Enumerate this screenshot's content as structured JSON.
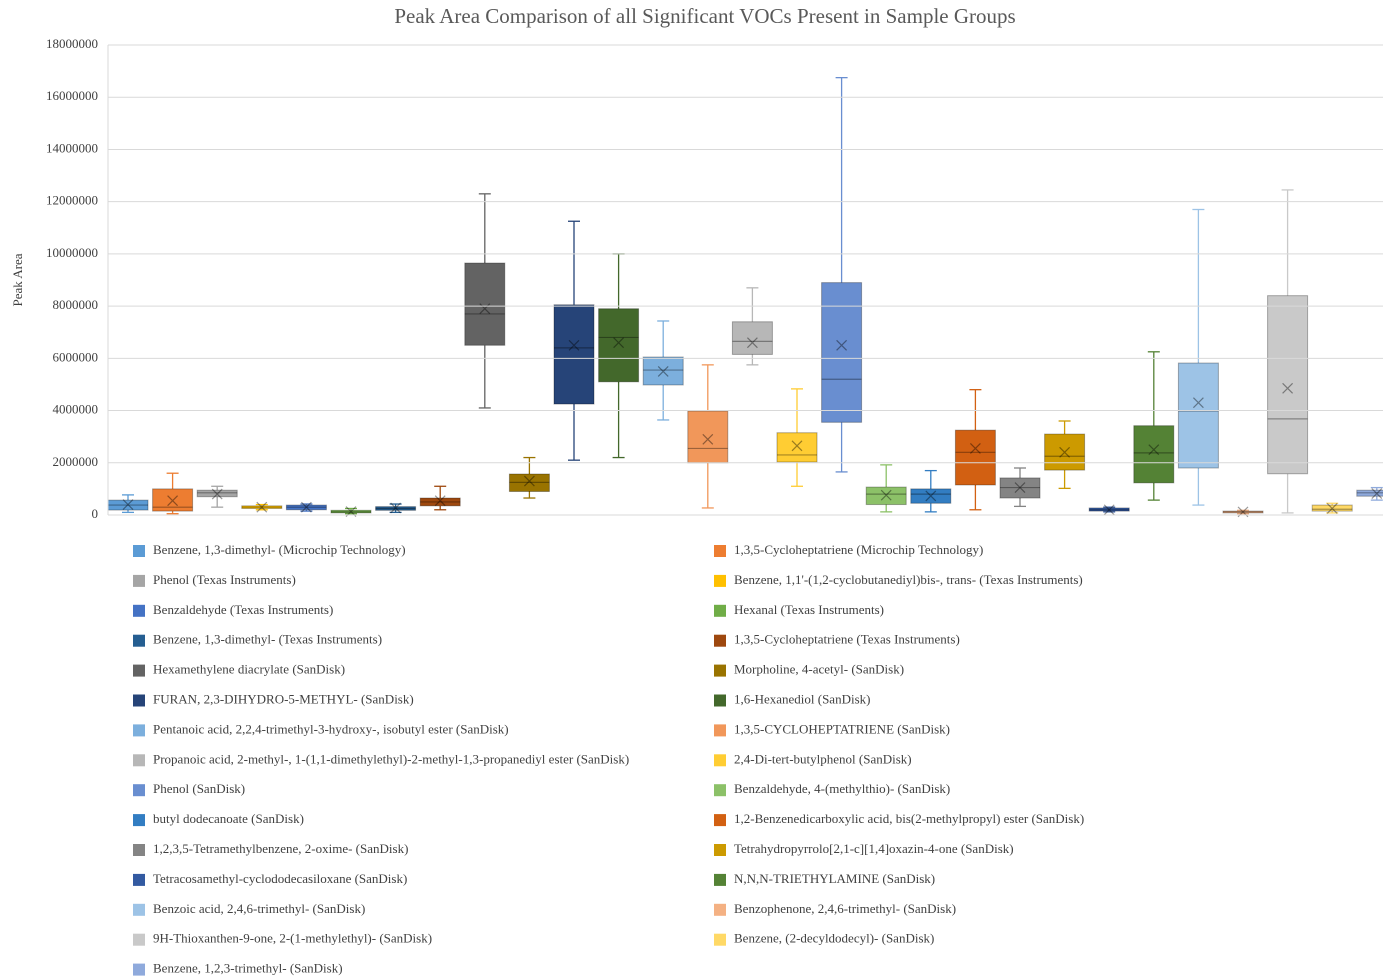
{
  "chart_data": {
    "type": "box",
    "title": "Peak Area Comparison of all Significant VOCs Present in Sample Groups",
    "y_label": "Peak Area",
    "ylim": [
      0,
      18000000
    ],
    "yticks": [
      0,
      2000000,
      4000000,
      6000000,
      8000000,
      10000000,
      12000000,
      14000000,
      16000000,
      18000000
    ],
    "grid": true,
    "series": [
      {
        "name": "Benzene, 1,3-dimethyl- (Microchip Technology)",
        "color": "#5b9bd5",
        "min": 100000,
        "q1": 190000,
        "median": 380000,
        "q3": 570000,
        "max": 770000,
        "mean": 400000
      },
      {
        "name": "1,3,5-Cycloheptatriene (Microchip Technology)",
        "color": "#ed7d31",
        "min": 50000,
        "q1": 150000,
        "median": 300000,
        "q3": 1000000,
        "max": 1600000,
        "mean": 550000
      },
      {
        "name": "Phenol (Texas Instruments)",
        "color": "#a5a5a5",
        "min": 300000,
        "q1": 700000,
        "median": 850000,
        "q3": 950000,
        "max": 1100000,
        "mean": 800000
      },
      {
        "name": "Benzene, 1,1'-(1,2-cyclobutanediyl)bis-, trans- (Texas Instruments)",
        "color": "#ffc000",
        "min": 200000,
        "q1": 250000,
        "median": 300000,
        "q3": 350000,
        "max": 400000,
        "mean": 300000
      },
      {
        "name": "Benzaldehyde (Texas Instruments)",
        "color": "#4472c4",
        "min": 150000,
        "q1": 200000,
        "median": 300000,
        "q3": 380000,
        "max": 420000,
        "mean": 300000
      },
      {
        "name": "Hexanal (Texas Instruments)",
        "color": "#70ad47",
        "min": 50000,
        "q1": 80000,
        "median": 120000,
        "q3": 180000,
        "max": 250000,
        "mean": 130000
      },
      {
        "name": "Benzene, 1,3-dimethyl- (Texas Instruments)",
        "color": "#255e91",
        "min": 100000,
        "q1": 180000,
        "median": 250000,
        "q3": 320000,
        "max": 420000,
        "mean": 270000
      },
      {
        "name": "1,3,5-Cycloheptatriene (Texas Instruments)",
        "color": "#9e480e",
        "min": 200000,
        "q1": 350000,
        "median": 500000,
        "q3": 650000,
        "max": 1100000,
        "mean": 550000
      },
      {
        "name": "Hexamethylene diacrylate (SanDisk)",
        "color": "#636363",
        "min": 4100000,
        "q1": 6500000,
        "median": 7700000,
        "q3": 9650000,
        "max": 12300000,
        "mean": 7900000
      },
      {
        "name": "Morpholine, 4-acetyl- (SanDisk)",
        "color": "#997300",
        "min": 650000,
        "q1": 900000,
        "median": 1250000,
        "q3": 1570000,
        "max": 2200000,
        "mean": 1300000
      },
      {
        "name": "FURAN, 2,3-DIHYDRO-5-METHYL- (SanDisk)",
        "color": "#264478",
        "min": 2100000,
        "q1": 4250000,
        "median": 6400000,
        "q3": 8050000,
        "max": 11250000,
        "mean": 6500000
      },
      {
        "name": "1,6-Hexanediol (SanDisk)",
        "color": "#43682b",
        "min": 2200000,
        "q1": 5100000,
        "median": 6800000,
        "q3": 7900000,
        "max": 10000000,
        "mean": 6600000
      },
      {
        "name": "Pentanoic acid, 2,2,4-trimethyl-3-hydroxy-, isobutyl ester (SanDisk)",
        "color": "#7cafdd",
        "min": 3640000,
        "q1": 4980000,
        "median": 5550000,
        "q3": 6050000,
        "max": 7430000,
        "mean": 5500000
      },
      {
        "name": "1,3,5-CYCLOHEPTATRIENE (SanDisk)",
        "color": "#f1975a",
        "min": 270000,
        "q1": 2000000,
        "median": 2550000,
        "q3": 3980000,
        "max": 5750000,
        "mean": 2900000
      },
      {
        "name": "Propanoic acid, 2-methyl-, 1-(1,1-dimethylethyl)-2-methyl-1,3-propanediyl ester (SanDisk)",
        "color": "#b7b7b7",
        "min": 5750000,
        "q1": 6150000,
        "median": 6650000,
        "q3": 7400000,
        "max": 8700000,
        "mean": 6600000
      },
      {
        "name": "2,4-Di-tert-butylphenol (SanDisk)",
        "color": "#ffcd33",
        "min": 1100000,
        "q1": 2030000,
        "median": 2300000,
        "q3": 3150000,
        "max": 4830000,
        "mean": 2650000
      },
      {
        "name": "Phenol (SanDisk)",
        "color": "#698ed0",
        "min": 1650000,
        "q1": 3550000,
        "median": 5200000,
        "q3": 8900000,
        "max": 16750000,
        "mean": 6500000
      },
      {
        "name": "Benzaldehyde, 4-(methylthio)- (SanDisk)",
        "color": "#8cc168",
        "min": 120000,
        "q1": 400000,
        "median": 800000,
        "q3": 1070000,
        "max": 1920000,
        "mean": 760000
      },
      {
        "name": "butyl dodecanoate (SanDisk)",
        "color": "#327dc2",
        "min": 120000,
        "q1": 450000,
        "median": 800000,
        "q3": 1000000,
        "max": 1700000,
        "mean": 730000
      },
      {
        "name": "1,2-Benzenedicarboxylic acid, bis(2-methylpropyl) ester (SanDisk)",
        "color": "#d26012",
        "min": 200000,
        "q1": 1150000,
        "median": 2400000,
        "q3": 3250000,
        "max": 4800000,
        "mean": 2550000
      },
      {
        "name": "1,2,3,5-Tetramethylbenzene, 2-oxime- (SanDisk)",
        "color": "#848484",
        "min": 330000,
        "q1": 650000,
        "median": 1050000,
        "q3": 1420000,
        "max": 1800000,
        "mean": 1050000
      },
      {
        "name": "Tetrahydropyrrolo[2,1-c][1,4]oxazin-4-one (SanDisk)",
        "color": "#cc9a00",
        "min": 1020000,
        "q1": 1720000,
        "median": 2250000,
        "q3": 3100000,
        "max": 3600000,
        "mean": 2400000
      },
      {
        "name": "Tetracosamethyl-cyclododecasiloxane (SanDisk)",
        "color": "#335aa1",
        "min": 120000,
        "q1": 150000,
        "median": 200000,
        "q3": 270000,
        "max": 300000,
        "mean": 200000
      },
      {
        "name": "N,N,N-TRIETHYLAMINE (SanDisk)",
        "color": "#548235",
        "min": 570000,
        "q1": 1230000,
        "median": 2380000,
        "q3": 3420000,
        "max": 6250000,
        "mean": 2500000
      },
      {
        "name": "Benzoic acid, 2,4,6-trimethyl- (SanDisk)",
        "color": "#9dc3e6",
        "min": 380000,
        "q1": 1800000,
        "median": 3980000,
        "q3": 5820000,
        "max": 11700000,
        "mean": 4300000
      },
      {
        "name": "Benzophenone, 2,4,6-trimethyl- (SanDisk)",
        "color": "#f4b183",
        "min": 50000,
        "q1": 80000,
        "median": 120000,
        "q3": 150000,
        "max": 180000,
        "mean": 120000
      },
      {
        "name": "9H-Thioxanthen-9-one, 2-(1-methylethyl)- (SanDisk)",
        "color": "#c9c9c9",
        "min": 80000,
        "q1": 1580000,
        "median": 3680000,
        "q3": 8400000,
        "max": 12450000,
        "mean": 4850000
      },
      {
        "name": "Benzene, (2-decyldodecyl)- (SanDisk)",
        "color": "#ffd966",
        "min": 80000,
        "q1": 150000,
        "median": 220000,
        "q3": 380000,
        "max": 450000,
        "mean": 250000
      },
      {
        "name": "Benzene, 1,2,3-trimethyl- (SanDisk)",
        "color": "#8faadc",
        "min": 570000,
        "q1": 720000,
        "median": 850000,
        "q3": 950000,
        "max": 1050000,
        "mean": 820000
      }
    ]
  }
}
